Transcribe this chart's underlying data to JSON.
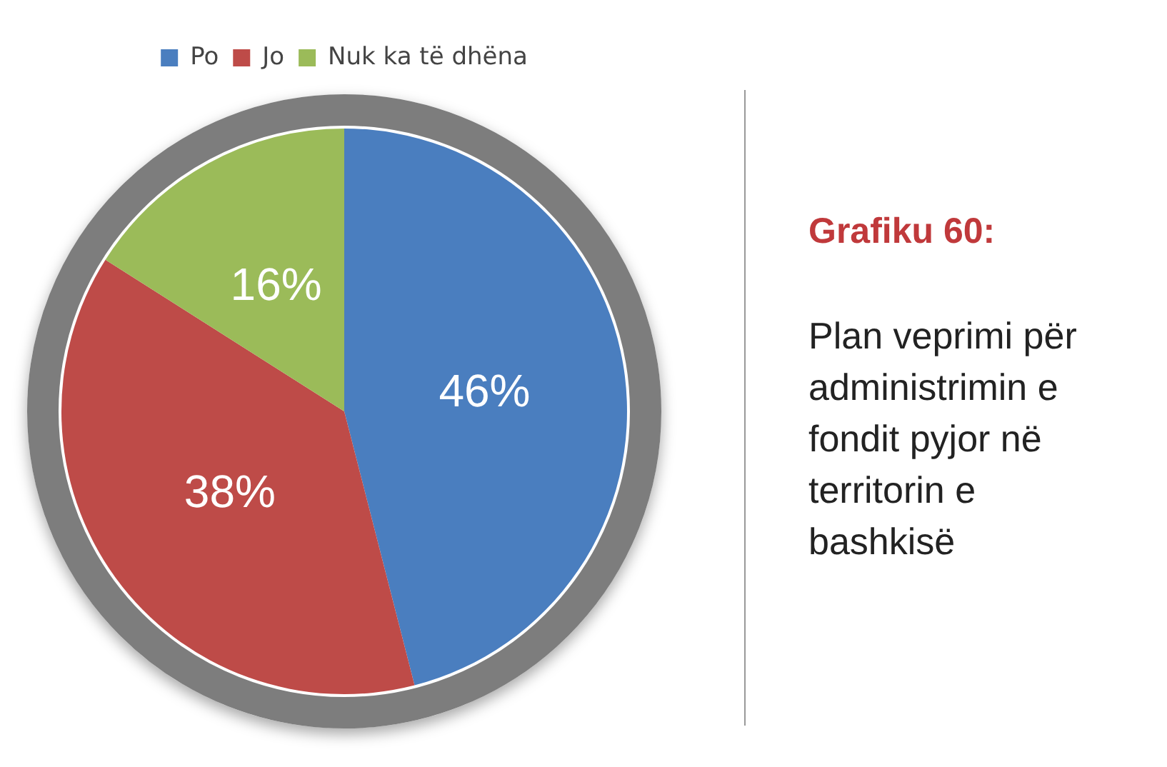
{
  "chart_data": {
    "type": "pie",
    "title": "Grafiku 60:",
    "subtitle": "Plan veprimi për administrimin e fondit pyjor në territorin e bashkisë",
    "categories": [
      "Po",
      "Jo",
      "Nuk ka të dhëna"
    ],
    "values": [
      46,
      38,
      16
    ],
    "colors": [
      "#4a7ebf",
      "#be4b48",
      "#9bbb59"
    ],
    "value_labels": [
      "46%",
      "38%",
      "16%"
    ],
    "legend": "top"
  }
}
